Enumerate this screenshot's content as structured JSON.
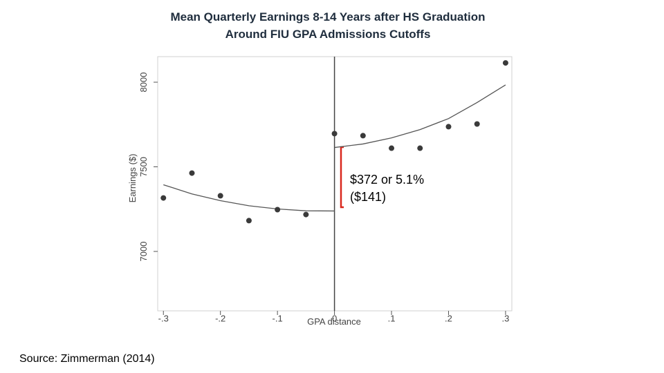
{
  "chart_data": {
    "type": "scatter",
    "title": "Mean Quarterly Earnings 8-14 Years after HS Graduation",
    "subtitle": "Around FIU GPA Admissions Cutoffs",
    "xlabel": "GPA distance",
    "ylabel": "Earnings ($)",
    "x": [
      -0.3,
      -0.25,
      -0.2,
      -0.15,
      -0.1,
      -0.05,
      0,
      0.05,
      0.1,
      0.15,
      0.2,
      0.25,
      0.3
    ],
    "values": [
      7316,
      7463,
      7329,
      7182,
      7247,
      7218,
      7696,
      7684,
      7610,
      7610,
      7737,
      7753,
      8114
    ],
    "color": "#3a3a3a",
    "fits": [
      {
        "x": [
          -0.3,
          -0.25,
          -0.2,
          -0.15,
          -0.1,
          -0.05,
          0
        ],
        "values": [
          7394,
          7340,
          7300,
          7270,
          7251,
          7240,
          7239
        ],
        "color": "#555555"
      },
      {
        "x": [
          0,
          0.05,
          0.1,
          0.15,
          0.2,
          0.25,
          0.3
        ],
        "values": [
          7614,
          7635,
          7671,
          7720,
          7785,
          7880,
          7984
        ],
        "color": "#555555"
      }
    ],
    "cutoff": 0,
    "annotations": [
      "$372 or 5.1%",
      "($141)"
    ],
    "xlim": [
      -0.31,
      0.311
    ],
    "ylim": [
      6649,
      8151
    ],
    "xticks": [
      {
        "value": -0.3,
        "label": "-.3"
      },
      {
        "value": -0.2,
        "label": "-.2"
      },
      {
        "value": -0.1,
        "label": "-.1"
      },
      0,
      {
        "value": 0.1,
        "label": ".1"
      },
      {
        "value": 0.2,
        "label": ".2"
      },
      {
        "value": 0.3,
        "label": ".3"
      }
    ],
    "yticks": [
      7000,
      7500,
      8000
    ],
    "grid": false,
    "source": "Source: Zimmerman (2014)"
  }
}
